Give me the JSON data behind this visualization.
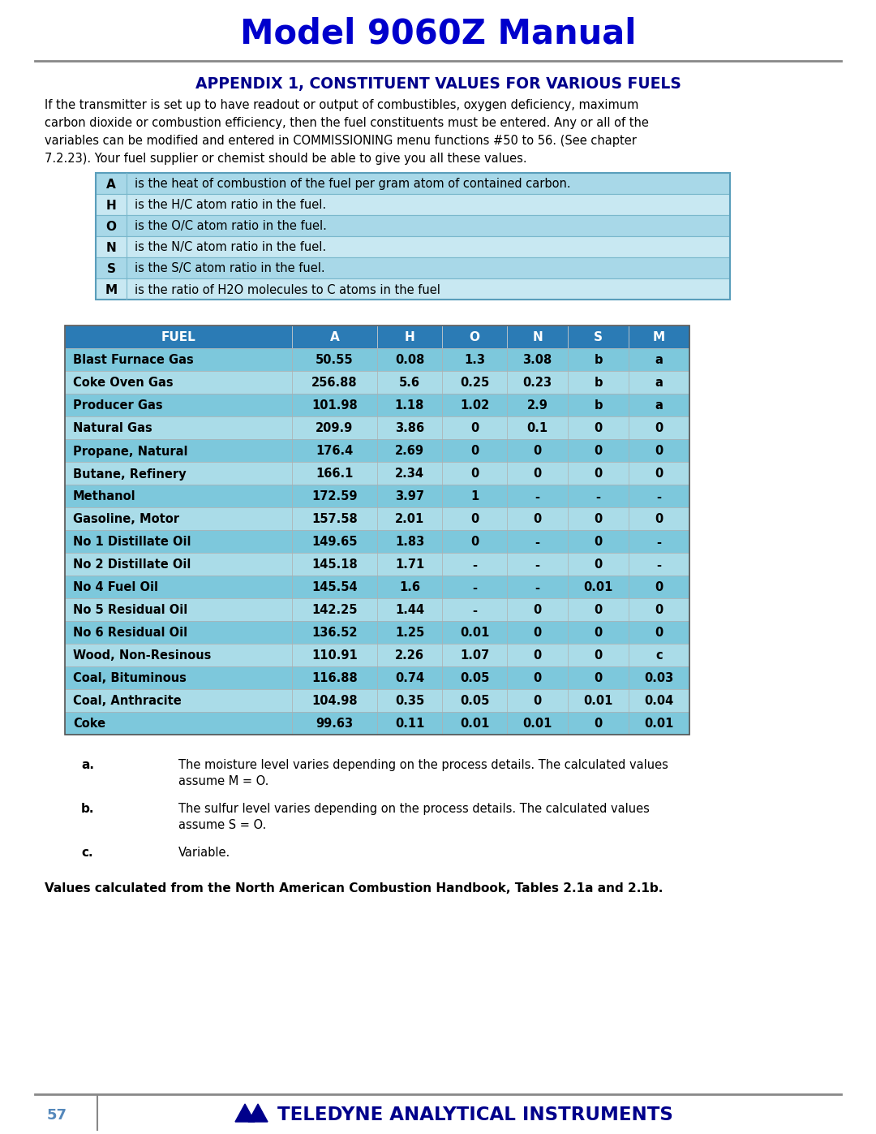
{
  "title": "Model 9060Z Manual",
  "title_color": "#0000CC",
  "appendix_title": "APPENDIX 1, CONSTITUENT VALUES FOR VARIOUS FUELS",
  "appendix_title_color": "#00008B",
  "intro_text": "If the transmitter is set up to have readout or output of combustibles, oxygen deficiency, maximum carbon dioxide or combustion efficiency, then the fuel constituents must be entered. Any or all of the variables can be modified and entered in COMMISSIONING menu functions #50 to 56. (See chapter 7.2.23). Your fuel supplier or chemist should be able to give you all these values.",
  "var_table": [
    [
      "A",
      "is the heat of combustion of the fuel per gram atom of contained carbon."
    ],
    [
      "H",
      "is the H/C atom ratio in the fuel."
    ],
    [
      "O",
      "is the O/C atom ratio in the fuel."
    ],
    [
      "N",
      "is the N/C atom ratio in the fuel."
    ],
    [
      "S",
      "is the S/C atom ratio in the fuel."
    ],
    [
      "M",
      "is the ratio of H2O molecules to C atoms in the fuel"
    ]
  ],
  "var_table_bg_dark": "#A8D8E8",
  "var_table_bg_light": "#C8E8F2",
  "fuel_table_header": [
    "FUEL",
    "A",
    "H",
    "O",
    "N",
    "S",
    "M"
  ],
  "fuel_table_header_bg": "#2B7BB5",
  "fuel_table_header_color": "#FFFFFF",
  "fuel_table_rows": [
    [
      "Blast Furnace Gas",
      "50.55",
      "0.08",
      "1.3",
      "3.08",
      "b",
      "a"
    ],
    [
      "Coke Oven Gas",
      "256.88",
      "5.6",
      "0.25",
      "0.23",
      "b",
      "a"
    ],
    [
      "Producer Gas",
      "101.98",
      "1.18",
      "1.02",
      "2.9",
      "b",
      "a"
    ],
    [
      "Natural Gas",
      "209.9",
      "3.86",
      "0",
      "0.1",
      "0",
      "0"
    ],
    [
      "Propane, Natural",
      "176.4",
      "2.69",
      "0",
      "0",
      "0",
      "0"
    ],
    [
      "Butane, Refinery",
      "166.1",
      "2.34",
      "0",
      "0",
      "0",
      "0"
    ],
    [
      "Methanol",
      "172.59",
      "3.97",
      "1",
      "-",
      "-",
      "-"
    ],
    [
      "Gasoline, Motor",
      "157.58",
      "2.01",
      "0",
      "0",
      "0",
      "0"
    ],
    [
      "No 1 Distillate Oil",
      "149.65",
      "1.83",
      "0",
      "-",
      "0",
      "-"
    ],
    [
      "No 2 Distillate Oil",
      "145.18",
      "1.71",
      "-",
      "-",
      "0",
      "-"
    ],
    [
      "No 4 Fuel Oil",
      "145.54",
      "1.6",
      "-",
      "-",
      "0.01",
      "0"
    ],
    [
      "No 5 Residual Oil",
      "142.25",
      "1.44",
      "-",
      "0",
      "0",
      "0"
    ],
    [
      "No 6 Residual Oil",
      "136.52",
      "1.25",
      "0.01",
      "0",
      "0",
      "0"
    ],
    [
      "Wood, Non-Resinous",
      "110.91",
      "2.26",
      "1.07",
      "0",
      "0",
      "c"
    ],
    [
      "Coal, Bituminous",
      "116.88",
      "0.74",
      "0.05",
      "0",
      "0",
      "0.03"
    ],
    [
      "Coal, Anthracite",
      "104.98",
      "0.35",
      "0.05",
      "0",
      "0.01",
      "0.04"
    ],
    [
      "Coke",
      "99.63",
      "0.11",
      "0.01",
      "0.01",
      "0",
      "0.01"
    ]
  ],
  "fuel_row_bg_odd": "#7DC8DC",
  "fuel_row_bg_even": "#AADCE8",
  "footnote_keys": [
    "a.",
    "b.",
    "c."
  ],
  "footnote_texts": [
    [
      "The moisture level varies depending on the process details. The calculated values",
      "assume M = O."
    ],
    [
      "The sulfur level varies depending on the process details. The calculated values",
      "assume S = O."
    ],
    [
      "Variable."
    ]
  ],
  "bottom_note": "Values calculated from the North American Combustion Handbook, Tables 2.1a and 2.1b.",
  "page_number": "57",
  "footer_text": "TELEDYNE ANALYTICAL INSTRUMENTS",
  "footer_color": "#00008B",
  "bg_color": "#FFFFFF",
  "separator_color": "#888888",
  "text_color": "#000000"
}
